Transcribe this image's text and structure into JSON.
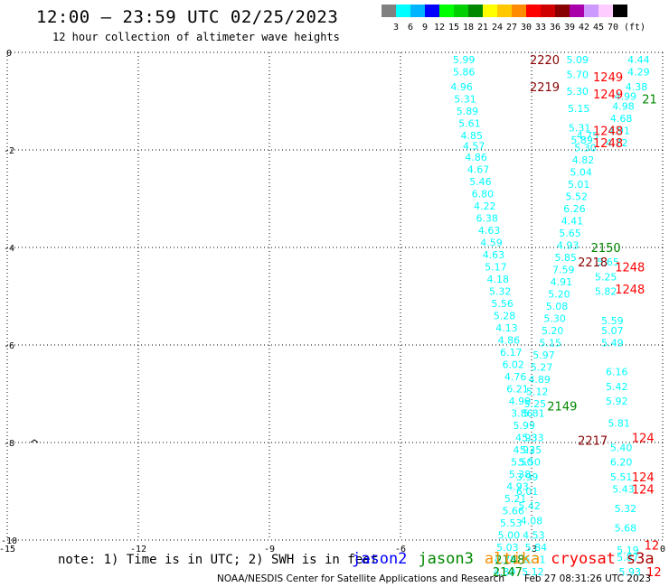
{
  "header": {
    "title": "12:00 – 23:59 UTC 02/25/2023",
    "subtitle": "12 hour collection of altimeter wave heights"
  },
  "legend": {
    "labels": [
      "3",
      "6",
      "9",
      "12",
      "15",
      "18",
      "21",
      "24",
      "27",
      "30",
      "33",
      "36",
      "39",
      "42",
      "45",
      "70"
    ],
    "unit": "(ft)",
    "colors": [
      "#808080",
      "#00ffff",
      "#00b4ff",
      "#0000ff",
      "#00ff00",
      "#00d000",
      "#008800",
      "#ffff00",
      "#ffc800",
      "#ff8c00",
      "#ff0000",
      "#d00000",
      "#880000",
      "#aa00aa",
      "#cc99ff",
      "#ffccff",
      "#000000"
    ]
  },
  "axes": {
    "x_ticks": [
      "-15",
      "-12",
      "-9",
      "-6",
      "-3",
      "0"
    ],
    "y_ticks": [
      "0",
      "-2",
      "-4",
      "-6",
      "-8",
      "-10"
    ],
    "xlim": [
      -15,
      0
    ],
    "ylim": [
      -10,
      0
    ]
  },
  "footer": {
    "note": "note: 1) Time is in UTC; 2) SWH is in feet",
    "satellites": [
      {
        "name": "jason2",
        "color": "#0000ff"
      },
      {
        "name": "jason3",
        "color": "#008800"
      },
      {
        "name": "altika",
        "color": "#ff8c00"
      },
      {
        "name": "cryosat",
        "color": "#ff0000"
      },
      {
        "name": "s3a",
        "color": "#aa0000"
      }
    ],
    "credit": "NOAA/NESDIS Center for Satellite Applications and Research",
    "timestamp": "Feb 27 08:31:26 UTC 2023"
  },
  "chart_data": {
    "type": "scatter",
    "xlim": [
      -15,
      0
    ],
    "ylim": [
      -10,
      0
    ],
    "grid": true,
    "wave_height_color": "#00ffff",
    "wave_heights": [
      {
        "x": -4.55,
        "y": -0.15,
        "v": "5.99"
      },
      {
        "x": -4.55,
        "y": -0.4,
        "v": "5.86"
      },
      {
        "x": -4.6,
        "y": -0.7,
        "v": "4.96"
      },
      {
        "x": -4.52,
        "y": -0.95,
        "v": "5.31"
      },
      {
        "x": -4.47,
        "y": -1.2,
        "v": "5.89"
      },
      {
        "x": -4.42,
        "y": -1.45,
        "v": "5.61"
      },
      {
        "x": -4.37,
        "y": -1.7,
        "v": "4.85"
      },
      {
        "x": -4.32,
        "y": -1.92,
        "v": "4.57"
      },
      {
        "x": -4.27,
        "y": -2.15,
        "v": "4.86"
      },
      {
        "x": -4.22,
        "y": -2.4,
        "v": "4.67"
      },
      {
        "x": -4.17,
        "y": -2.65,
        "v": "5.46"
      },
      {
        "x": -4.12,
        "y": -2.9,
        "v": "6.80"
      },
      {
        "x": -4.07,
        "y": -3.15,
        "v": "4.22"
      },
      {
        "x": -4.02,
        "y": -3.4,
        "v": "6.38"
      },
      {
        "x": -3.97,
        "y": -3.65,
        "v": "4.63"
      },
      {
        "x": -3.92,
        "y": -3.9,
        "v": "4.59"
      },
      {
        "x": -3.87,
        "y": -4.15,
        "v": "4.63"
      },
      {
        "x": -3.82,
        "y": -4.4,
        "v": "5.17"
      },
      {
        "x": -3.77,
        "y": -4.65,
        "v": "4.18"
      },
      {
        "x": -3.72,
        "y": -4.9,
        "v": "5.32"
      },
      {
        "x": -3.67,
        "y": -5.15,
        "v": "5.56"
      },
      {
        "x": -3.62,
        "y": -5.4,
        "v": "5.28"
      },
      {
        "x": -3.57,
        "y": -5.65,
        "v": "4.13"
      },
      {
        "x": -3.52,
        "y": -5.9,
        "v": "4.86"
      },
      {
        "x": -3.47,
        "y": -6.15,
        "v": "6.17"
      },
      {
        "x": -3.42,
        "y": -6.4,
        "v": "6.02"
      },
      {
        "x": -3.37,
        "y": -6.65,
        "v": "4.76"
      },
      {
        "x": -3.32,
        "y": -6.9,
        "v": "6.21"
      },
      {
        "x": -3.27,
        "y": -7.15,
        "v": "4.99"
      },
      {
        "x": -3.22,
        "y": -7.4,
        "v": "3.86"
      },
      {
        "x": -3.17,
        "y": -7.65,
        "v": "5.99"
      },
      {
        "x": -3.12,
        "y": -7.9,
        "v": "4.93"
      },
      {
        "x": -3.17,
        "y": -8.15,
        "v": "4.93"
      },
      {
        "x": -3.22,
        "y": -8.4,
        "v": "5.50"
      },
      {
        "x": -3.27,
        "y": -8.65,
        "v": "5.38"
      },
      {
        "x": -3.32,
        "y": -8.9,
        "v": "4.93"
      },
      {
        "x": -3.37,
        "y": -9.15,
        "v": "5.21"
      },
      {
        "x": -3.42,
        "y": -9.4,
        "v": "5.66"
      },
      {
        "x": -3.47,
        "y": -9.65,
        "v": "5.53"
      },
      {
        "x": -3.52,
        "y": -9.9,
        "v": "5.00"
      },
      {
        "x": -3.55,
        "y": -10.15,
        "v": "5.03"
      },
      {
        "x": -3.6,
        "y": -10.4,
        "v": "4.78"
      },
      {
        "x": -3.62,
        "y": -10.65,
        "v": "4.89"
      },
      {
        "x": -2.97,
        "y": -10.65,
        "v": "5.12"
      },
      {
        "x": -2.93,
        "y": -10.4,
        "v": "6.31"
      },
      {
        "x": -2.9,
        "y": -10.15,
        "v": "5.84"
      },
      {
        "x": -2.95,
        "y": -9.9,
        "v": "4.53"
      },
      {
        "x": -3.0,
        "y": -9.6,
        "v": "4.08"
      },
      {
        "x": -3.05,
        "y": -9.3,
        "v": "5.42"
      },
      {
        "x": -3.1,
        "y": -9.0,
        "v": "6.01"
      },
      {
        "x": -3.1,
        "y": -8.7,
        "v": "3.99"
      },
      {
        "x": -3.05,
        "y": -8.4,
        "v": "5.50"
      },
      {
        "x": -3.02,
        "y": -8.15,
        "v": "5.25"
      },
      {
        "x": -2.97,
        "y": -7.9,
        "v": "5.33"
      },
      {
        "x": -2.95,
        "y": -7.4,
        "v": "5.81"
      },
      {
        "x": -2.92,
        "y": -7.2,
        "v": "5.25"
      },
      {
        "x": -2.87,
        "y": -6.95,
        "v": "5.12"
      },
      {
        "x": -2.82,
        "y": -6.7,
        "v": "4.89"
      },
      {
        "x": -2.77,
        "y": -6.45,
        "v": "5.27"
      },
      {
        "x": -2.72,
        "y": -6.2,
        "v": "5.97"
      },
      {
        "x": -2.57,
        "y": -5.95,
        "v": "5.15"
      },
      {
        "x": -2.52,
        "y": -5.7,
        "v": "5.20"
      },
      {
        "x": -2.47,
        "y": -5.45,
        "v": "5.30"
      },
      {
        "x": -2.42,
        "y": -5.2,
        "v": "5.08"
      },
      {
        "x": -2.37,
        "y": -4.95,
        "v": "5.20"
      },
      {
        "x": -2.32,
        "y": -4.7,
        "v": "4.91"
      },
      {
        "x": -2.27,
        "y": -4.45,
        "v": "7.59"
      },
      {
        "x": -2.22,
        "y": -4.2,
        "v": "5.85"
      },
      {
        "x": -2.17,
        "y": -3.95,
        "v": "4.93"
      },
      {
        "x": -2.12,
        "y": -3.7,
        "v": "5.65"
      },
      {
        "x": -2.07,
        "y": -3.45,
        "v": "4.41"
      },
      {
        "x": -2.02,
        "y": -3.2,
        "v": "6.26"
      },
      {
        "x": -1.97,
        "y": -2.95,
        "v": "5.52"
      },
      {
        "x": -1.92,
        "y": -2.7,
        "v": "5.01"
      },
      {
        "x": -1.87,
        "y": -2.45,
        "v": "5.04"
      },
      {
        "x": -1.82,
        "y": -2.2,
        "v": "4.82"
      },
      {
        "x": -1.77,
        "y": -1.95,
        "v": "5.30"
      },
      {
        "x": -1.72,
        "y": -1.7,
        "v": "4.75"
      },
      {
        "x": -1.95,
        "y": -0.15,
        "v": "5.09"
      },
      {
        "x": -1.95,
        "y": -0.45,
        "v": "5.70"
      },
      {
        "x": -1.95,
        "y": -0.8,
        "v": "5.30"
      },
      {
        "x": -1.92,
        "y": -1.15,
        "v": "5.15"
      },
      {
        "x": -1.9,
        "y": -1.55,
        "v": "5.31"
      },
      {
        "x": -1.85,
        "y": -1.8,
        "v": "5.89"
      },
      {
        "x": -0.55,
        "y": -0.15,
        "v": "4.44"
      },
      {
        "x": -0.55,
        "y": -0.4,
        "v": "4.29"
      },
      {
        "x": -0.6,
        "y": -0.7,
        "v": "4.38"
      },
      {
        "x": -0.85,
        "y": -0.9,
        "v": "4.99"
      },
      {
        "x": -0.9,
        "y": -1.1,
        "v": "4.98"
      },
      {
        "x": -0.95,
        "y": -1.35,
        "v": "4.68"
      },
      {
        "x": -1.0,
        "y": -1.6,
        "v": "4.91"
      },
      {
        "x": -1.05,
        "y": -1.85,
        "v": "4.72"
      },
      {
        "x": -1.25,
        "y": -4.3,
        "v": "5.65"
      },
      {
        "x": -1.3,
        "y": -4.6,
        "v": "5.25"
      },
      {
        "x": -1.3,
        "y": -4.9,
        "v": "5.82"
      },
      {
        "x": -1.15,
        "y": -5.5,
        "v": "5.59"
      },
      {
        "x": -1.15,
        "y": -5.7,
        "v": "5.07"
      },
      {
        "x": -1.15,
        "y": -5.95,
        "v": "5.49"
      },
      {
        "x": -1.05,
        "y": -6.55,
        "v": "6.16"
      },
      {
        "x": -1.05,
        "y": -6.85,
        "v": "5.42"
      },
      {
        "x": -1.05,
        "y": -7.15,
        "v": "5.92"
      },
      {
        "x": -1.0,
        "y": -7.6,
        "v": "5.81"
      },
      {
        "x": -0.95,
        "y": -8.1,
        "v": "5.40"
      },
      {
        "x": -0.95,
        "y": -8.4,
        "v": "6.20"
      },
      {
        "x": -0.95,
        "y": -8.7,
        "v": "5.51"
      },
      {
        "x": -0.9,
        "y": -8.95,
        "v": "5.43"
      },
      {
        "x": -0.85,
        "y": -9.35,
        "v": "5.32"
      },
      {
        "x": -0.85,
        "y": -9.75,
        "v": "5.68"
      },
      {
        "x": -0.8,
        "y": -10.2,
        "v": "5.19"
      },
      {
        "x": -0.8,
        "y": -10.35,
        "v": "5.87"
      },
      {
        "x": -0.75,
        "y": -10.65,
        "v": "5.93"
      }
    ],
    "pass_labels": [
      {
        "x": -2.7,
        "y": -0.15,
        "text": "2220",
        "color": "#880000"
      },
      {
        "x": -2.7,
        "y": -0.7,
        "text": "2219",
        "color": "#880000"
      },
      {
        "x": -1.6,
        "y": -4.3,
        "text": "2218",
        "color": "#880000"
      },
      {
        "x": -1.6,
        "y": -7.95,
        "text": "2217",
        "color": "#880000"
      },
      {
        "x": -1.25,
        "y": -0.5,
        "text": "1249",
        "color": "#ff0000"
      },
      {
        "x": -1.25,
        "y": -0.85,
        "text": "1249",
        "color": "#ff0000"
      },
      {
        "x": -1.25,
        "y": -1.6,
        "text": "1248",
        "color": "#ff0000"
      },
      {
        "x": -1.25,
        "y": -1.85,
        "text": "1248",
        "color": "#ff0000"
      },
      {
        "x": -0.75,
        "y": -4.4,
        "text": "1248",
        "color": "#ff0000"
      },
      {
        "x": -0.75,
        "y": -4.85,
        "text": "1248",
        "color": "#ff0000"
      },
      {
        "x": -0.45,
        "y": -7.9,
        "text": "124",
        "color": "#ff0000"
      },
      {
        "x": -0.45,
        "y": -8.7,
        "text": "124",
        "color": "#ff0000"
      },
      {
        "x": -0.45,
        "y": -8.95,
        "text": "124",
        "color": "#ff0000"
      },
      {
        "x": -0.25,
        "y": -10.1,
        "text": "12",
        "color": "#ff0000"
      },
      {
        "x": -0.2,
        "y": -10.65,
        "text": "12",
        "color": "#ff0000"
      },
      {
        "x": -0.3,
        "y": -0.95,
        "text": "21",
        "color": "#008800"
      },
      {
        "x": -1.3,
        "y": -4.0,
        "text": "2150",
        "color": "#008800"
      },
      {
        "x": -2.3,
        "y": -7.25,
        "text": "2149",
        "color": "#008800"
      },
      {
        "x": -3.5,
        "y": -10.4,
        "text": "2148",
        "color": "#008800"
      },
      {
        "x": -3.55,
        "y": -10.65,
        "text": "2147",
        "color": "#008800"
      }
    ]
  }
}
